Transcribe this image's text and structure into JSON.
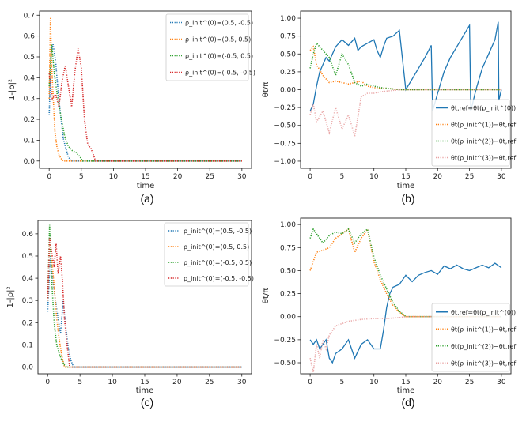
{
  "chart_data": [
    {
      "type": "line",
      "panel_caption": "(a)",
      "xlabel": "time",
      "ylabel": "1-|ρ|²",
      "xlim": [
        -1.5,
        31.5
      ],
      "ylim": [
        -0.035,
        0.72
      ],
      "xticks": [
        0,
        5,
        10,
        15,
        20,
        25,
        30
      ],
      "yticks": [
        0.0,
        0.1,
        0.2,
        0.3,
        0.4,
        0.5,
        0.6,
        0.7
      ],
      "yticks_text": [
        "0.0",
        "0.1",
        "0.2",
        "0.3",
        "0.4",
        "0.5",
        "0.6",
        "0.7"
      ],
      "legend_position": "top-right",
      "series": [
        {
          "name": "ρ_init^(0)=(0.5, -0.5)",
          "color": "#1f77b4",
          "dash": "dotted",
          "x": [
            0.0,
            0.3,
            0.6,
            1.0,
            1.4,
            1.8,
            2.2,
            2.6,
            3.0,
            3.4,
            30.0
          ],
          "y": [
            0.22,
            0.52,
            0.56,
            0.48,
            0.33,
            0.21,
            0.11,
            0.06,
            0.02,
            0.0,
            0.0
          ]
        },
        {
          "name": "ρ_init^(0)=(0.5, 0.5)",
          "color": "#ff7f0e",
          "dash": "dotted",
          "x": [
            0.0,
            0.2,
            0.4,
            0.6,
            0.9,
            1.2,
            1.5,
            1.9,
            2.2,
            30.0
          ],
          "y": [
            0.3,
            0.69,
            0.45,
            0.32,
            0.14,
            0.07,
            0.03,
            0.01,
            0.0,
            0.0
          ]
        },
        {
          "name": "ρ_init^(0)=(-0.5, 0.5)",
          "color": "#2ca02c",
          "dash": "dotted",
          "x": [
            0.0,
            0.4,
            0.8,
            1.3,
            1.8,
            2.4,
            3.0,
            3.6,
            4.2,
            4.8,
            5.2,
            30.0
          ],
          "y": [
            0.36,
            0.56,
            0.42,
            0.31,
            0.22,
            0.12,
            0.07,
            0.05,
            0.04,
            0.02,
            0.0,
            0.0
          ]
        },
        {
          "name": "ρ_init^(0)=(-0.5, -0.5)",
          "color": "#d62728",
          "dash": "dotted",
          "x": [
            0.0,
            0.5,
            1.0,
            1.5,
            2.0,
            2.5,
            3.0,
            3.5,
            4.0,
            4.5,
            5.0,
            5.5,
            6.0,
            6.5,
            7.0,
            7.2,
            30.0
          ],
          "y": [
            0.42,
            0.3,
            0.32,
            0.26,
            0.38,
            0.46,
            0.36,
            0.26,
            0.43,
            0.54,
            0.45,
            0.2,
            0.08,
            0.06,
            0.02,
            0.0,
            0.0
          ]
        }
      ]
    },
    {
      "type": "line",
      "panel_caption": "(b)",
      "xlabel": "time",
      "ylabel": "θt/π",
      "xlim": [
        -1.5,
        31.5
      ],
      "ylim": [
        -1.1,
        1.1
      ],
      "xticks": [
        0,
        5,
        10,
        15,
        20,
        25,
        30
      ],
      "yticks": [
        -1.0,
        -0.75,
        -0.5,
        -0.25,
        0.0,
        0.25,
        0.5,
        0.75,
        1.0
      ],
      "yticks_text": [
        "−1.00",
        "−0.75",
        "−0.50",
        "−0.25",
        "0.00",
        "0.25",
        "0.50",
        "0.75",
        "1.00"
      ],
      "legend_position": "lower-right",
      "series": [
        {
          "name": "θt,ref=θt(ρ_init^(0))",
          "color": "#1f77b4",
          "dash": "solid",
          "x": [
            0.0,
            0.5,
            1.0,
            1.5,
            2.0,
            2.5,
            3.0,
            3.5,
            4.0,
            5.0,
            6.0,
            7.0,
            7.5,
            8.0,
            9.0,
            10.0,
            10.5,
            11.0,
            11.5,
            12.0,
            13.0,
            14.0,
            15.0,
            16.0,
            17.0,
            18.0,
            19.0,
            19.2,
            20.0,
            21.0,
            22.0,
            23.0,
            24.0,
            25.0,
            25.2,
            26.0,
            27.0,
            28.0,
            29.0,
            29.5,
            29.6,
            30.0
          ],
          "y": [
            -0.3,
            -0.2,
            0.05,
            0.25,
            0.35,
            0.45,
            0.4,
            0.5,
            0.6,
            0.7,
            0.62,
            0.72,
            0.55,
            0.6,
            0.65,
            0.7,
            0.55,
            0.45,
            0.6,
            0.72,
            0.75,
            0.83,
            0.0,
            0.15,
            0.3,
            0.45,
            0.62,
            -0.3,
            -0.05,
            0.25,
            0.45,
            0.6,
            0.75,
            0.9,
            -0.3,
            0.0,
            0.3,
            0.5,
            0.7,
            0.95,
            -0.15,
            0.0
          ]
        },
        {
          "name": "θt(ρ_init^(1))−θt,ref",
          "color": "#ff7f0e",
          "dash": "dotted",
          "x": [
            0.0,
            0.5,
            1.0,
            2.0,
            3.0,
            4.0,
            5.0,
            6.0,
            7.0,
            8.0,
            9.0,
            10.0,
            11.0,
            12.0,
            13.0,
            14.0,
            15.0,
            30.0
          ],
          "y": [
            0.55,
            0.6,
            0.35,
            0.2,
            0.1,
            0.12,
            0.1,
            0.08,
            0.1,
            0.12,
            0.05,
            0.03,
            0.02,
            0.02,
            0.01,
            0.0,
            0.0,
            0.0
          ]
        },
        {
          "name": "θt(ρ_init^(2))−θt,ref",
          "color": "#2ca02c",
          "dash": "dotted",
          "x": [
            0.0,
            0.5,
            1.0,
            2.0,
            3.0,
            4.0,
            5.0,
            6.0,
            7.0,
            8.0,
            9.0,
            10.0,
            11.0,
            12.0,
            13.0,
            14.0,
            30.0
          ],
          "y": [
            0.3,
            0.5,
            0.65,
            0.55,
            0.45,
            0.2,
            0.5,
            0.35,
            0.1,
            0.05,
            0.08,
            0.05,
            0.03,
            0.02,
            0.01,
            0.0,
            0.0
          ]
        },
        {
          "name": "θt(ρ_init^(3))−θt,ref",
          "color": "#e8a0a0",
          "dash": "dotted",
          "x": [
            0.0,
            0.5,
            1.0,
            2.0,
            3.0,
            4.0,
            5.0,
            6.0,
            7.0,
            8.0,
            9.0,
            10.0,
            11.0,
            12.0,
            13.0,
            14.0,
            30.0
          ],
          "y": [
            -0.35,
            -0.2,
            -0.45,
            -0.3,
            -0.6,
            -0.25,
            -0.55,
            -0.35,
            -0.65,
            -0.1,
            -0.05,
            -0.05,
            -0.03,
            -0.02,
            -0.01,
            0.0,
            0.0
          ]
        }
      ]
    },
    {
      "type": "line",
      "panel_caption": "(c)",
      "xlabel": "time",
      "ylabel": "1-|ρ|²",
      "xlim": [
        -1.5,
        31.5
      ],
      "ylim": [
        -0.03,
        0.66
      ],
      "xticks": [
        0,
        5,
        10,
        15,
        20,
        25,
        30
      ],
      "yticks": [
        0.0,
        0.1,
        0.2,
        0.3,
        0.4,
        0.5,
        0.6
      ],
      "yticks_text": [
        "0.0",
        "0.1",
        "0.2",
        "0.3",
        "0.4",
        "0.5",
        "0.6"
      ],
      "legend_position": "top-right",
      "series": [
        {
          "name": "ρ_init^(0)=(0.5, -0.5)",
          "color": "#1f77b4",
          "dash": "dotted",
          "x": [
            0.0,
            0.4,
            0.8,
            1.2,
            1.6,
            2.0,
            2.4,
            2.8,
            3.2,
            3.6,
            4.0,
            30.0
          ],
          "y": [
            0.25,
            0.5,
            0.4,
            0.3,
            0.22,
            0.15,
            0.3,
            0.18,
            0.08,
            0.03,
            0.0,
            0.0
          ]
        },
        {
          "name": "ρ_init^(0)=(0.5, 0.5)",
          "color": "#ff7f0e",
          "dash": "dotted",
          "x": [
            0.0,
            0.3,
            0.6,
            1.0,
            1.4,
            1.8,
            2.2,
            2.6,
            30.0
          ],
          "y": [
            0.3,
            0.56,
            0.5,
            0.36,
            0.22,
            0.12,
            0.05,
            0.0,
            0.0
          ]
        },
        {
          "name": "ρ_init^(0)=(-0.5, 0.5)",
          "color": "#2ca02c",
          "dash": "dotted",
          "x": [
            0.0,
            0.3,
            0.6,
            1.0,
            1.4,
            1.8,
            2.2,
            2.6,
            3.0,
            30.0
          ],
          "y": [
            0.3,
            0.64,
            0.4,
            0.2,
            0.1,
            0.06,
            0.03,
            0.01,
            0.0,
            0.0
          ]
        },
        {
          "name": "ρ_init^(0)=(-0.5, -0.5)",
          "color": "#d62728",
          "dash": "dotted",
          "x": [
            0.0,
            0.3,
            0.6,
            1.0,
            1.3,
            1.6,
            2.0,
            2.3,
            2.6,
            3.0,
            3.4,
            30.0
          ],
          "y": [
            0.3,
            0.58,
            0.52,
            0.45,
            0.56,
            0.42,
            0.5,
            0.38,
            0.22,
            0.1,
            0.0,
            0.0
          ]
        }
      ]
    },
    {
      "type": "line",
      "panel_caption": "(d)",
      "xlabel": "time",
      "ylabel": "θt/π",
      "xlim": [
        -1.5,
        31.5
      ],
      "ylim": [
        -0.62,
        1.07
      ],
      "xticks": [
        0,
        5,
        10,
        15,
        20,
        25,
        30
      ],
      "yticks": [
        -0.5,
        -0.25,
        0.0,
        0.25,
        0.5,
        0.75,
        1.0
      ],
      "yticks_text": [
        "−0.50",
        "−0.25",
        "0.00",
        "0.25",
        "0.50",
        "0.75",
        "1.00"
      ],
      "legend_position": "lower-right",
      "series": [
        {
          "name": "θt,ref=θt(ρ_init^(0))",
          "color": "#1f77b4",
          "dash": "solid",
          "x": [
            0.0,
            0.5,
            1.0,
            1.5,
            2.0,
            2.5,
            3.0,
            3.5,
            4.0,
            5.0,
            6.0,
            7.0,
            8.0,
            9.0,
            10.0,
            11.0,
            11.5,
            12.0,
            12.5,
            13.0,
            14.0,
            15.0,
            16.0,
            17.0,
            18.0,
            19.0,
            20.0,
            21.0,
            22.0,
            23.0,
            24.0,
            25.0,
            26.0,
            27.0,
            28.0,
            29.0,
            30.0
          ],
          "y": [
            -0.25,
            -0.3,
            -0.25,
            -0.35,
            -0.3,
            -0.25,
            -0.45,
            -0.5,
            -0.4,
            -0.35,
            -0.25,
            -0.45,
            -0.3,
            -0.25,
            -0.35,
            -0.35,
            -0.15,
            0.1,
            0.25,
            0.32,
            0.35,
            0.45,
            0.38,
            0.45,
            0.48,
            0.5,
            0.46,
            0.55,
            0.52,
            0.56,
            0.52,
            0.5,
            0.53,
            0.56,
            0.53,
            0.58,
            0.53
          ]
        },
        {
          "name": "θt(ρ_init^(1))−θt,ref",
          "color": "#ff7f0e",
          "dash": "dotted",
          "x": [
            0.0,
            0.5,
            1.0,
            2.0,
            3.0,
            4.0,
            5.0,
            6.0,
            7.0,
            8.0,
            9.0,
            10.0,
            11.0,
            12.0,
            13.0,
            14.0,
            15.0,
            30.0
          ],
          "y": [
            0.5,
            0.6,
            0.7,
            0.72,
            0.75,
            0.85,
            0.9,
            0.95,
            0.7,
            0.85,
            0.95,
            0.6,
            0.4,
            0.25,
            0.12,
            0.05,
            0.0,
            0.0
          ]
        },
        {
          "name": "θt(ρ_init^(2))−θt,ref",
          "color": "#2ca02c",
          "dash": "dotted",
          "x": [
            0.0,
            0.5,
            1.0,
            2.0,
            3.0,
            4.0,
            5.0,
            6.0,
            7.0,
            8.0,
            9.0,
            10.0,
            11.0,
            12.0,
            13.0,
            14.0,
            15.0,
            30.0
          ],
          "y": [
            0.85,
            0.95,
            0.9,
            0.8,
            0.88,
            0.92,
            0.9,
            0.95,
            0.8,
            0.9,
            0.95,
            0.65,
            0.45,
            0.3,
            0.15,
            0.06,
            0.0,
            0.0
          ]
        },
        {
          "name": "θt(ρ_init^(3))−θt,ref",
          "color": "#e8a0a0",
          "dash": "dotted",
          "x": [
            0.0,
            0.5,
            1.0,
            1.5,
            2.0,
            2.5,
            3.0,
            4.0,
            6.0,
            8.0,
            10.0,
            12.0,
            14.0,
            15.0,
            30.0
          ],
          "y": [
            -0.45,
            -0.6,
            -0.3,
            -0.45,
            -0.25,
            -0.35,
            -0.2,
            -0.1,
            -0.05,
            -0.03,
            -0.02,
            -0.02,
            -0.01,
            0.0,
            0.0
          ]
        }
      ]
    }
  ]
}
